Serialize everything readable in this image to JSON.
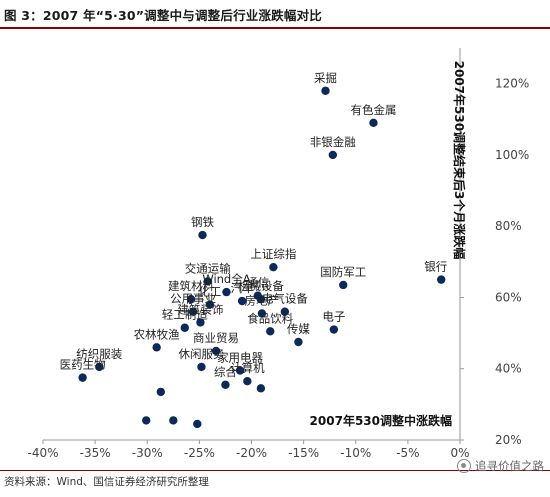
{
  "header": {
    "title": "图 3：2007 年“5·30”调整中与调整后行业涨跌幅对比"
  },
  "footer": {
    "source": "资料来源：Wind、国信证券经济研究所整理"
  },
  "watermark": {
    "text": "追寻价值之路"
  },
  "chart_data": {
    "type": "scatter",
    "xlabel": "2007年530调整中涨跌幅",
    "ylabel": "2007年530调整结束后3个月涨跌幅",
    "xlim": [
      -40,
      0
    ],
    "ylim": [
      20,
      130
    ],
    "x_ticks": [
      "-40%",
      "-35%",
      "-30%",
      "-25%",
      "-20%",
      "-15%",
      "-10%",
      "-5%",
      "0%"
    ],
    "y_ticks": [
      "20%",
      "40%",
      "60%",
      "80%",
      "100%",
      "120%"
    ],
    "grid": false,
    "marker_color": "#0b2a5b",
    "points": [
      {
        "label": "采掘",
        "x": -12.9,
        "y": 118
      },
      {
        "label": "有色金属",
        "x": -8.3,
        "y": 109
      },
      {
        "label": "非银金融",
        "x": -12.2,
        "y": 100
      },
      {
        "label": "钢铁",
        "x": -24.7,
        "y": 77.5
      },
      {
        "label": "银行",
        "x": -1.8,
        "y": 65
      },
      {
        "label": "上证综指",
        "x": -17.9,
        "y": 68.5
      },
      {
        "label": "国防军工",
        "x": -11.2,
        "y": 63.5
      },
      {
        "label": "交通运输",
        "x": -24.2,
        "y": 64.5
      },
      {
        "label": "Wind全A",
        "x": -22.4,
        "y": 61.5
      },
      {
        "label": "通信",
        "x": -19.4,
        "y": 60.5
      },
      {
        "label": "建筑材料",
        "x": -25.8,
        "y": 59.5
      },
      {
        "label": "机械设备",
        "x": -19.1,
        "y": 59.5
      },
      {
        "label": "化工",
        "x": -24.0,
        "y": 58
      },
      {
        "label": "汽车",
        "x": -20.9,
        "y": 59
      },
      {
        "label": "公用事业",
        "x": -25.6,
        "y": 56
      },
      {
        "label": "房地产",
        "x": -19.0,
        "y": 55.5
      },
      {
        "label": "电气设备",
        "x": -16.8,
        "y": 56
      },
      {
        "label": "轻工制造",
        "x": -26.4,
        "y": 51.5
      },
      {
        "label": "建筑装饰",
        "x": -24.9,
        "y": 53
      },
      {
        "label": "食品饮料",
        "x": -18.2,
        "y": 50.5
      },
      {
        "label": "电子",
        "x": -12.1,
        "y": 51
      },
      {
        "label": "农林牧渔",
        "x": -29.1,
        "y": 46
      },
      {
        "label": "传媒",
        "x": -15.5,
        "y": 47.5
      },
      {
        "label": "商业贸易",
        "x": -23.4,
        "y": 45
      },
      {
        "label": "纺织服装",
        "x": -34.6,
        "y": 40.5
      },
      {
        "label": "医药生物",
        "x": -36.2,
        "y": 37.5
      },
      {
        "label": "休闲服务",
        "x": -24.8,
        "y": 40.5
      },
      {
        "label": "家用电器",
        "x": -21.1,
        "y": 39.5
      },
      {
        "label": "计算机",
        "x": -20.4,
        "y": 36.5
      },
      {
        "label": "综合",
        "x": -22.5,
        "y": 35.5
      },
      {
        "label": "",
        "x": -19.1,
        "y": 34.5
      },
      {
        "label": "",
        "x": -28.7,
        "y": 33.5
      },
      {
        "label": "",
        "x": -30.1,
        "y": 25.5
      },
      {
        "label": "",
        "x": -27.5,
        "y": 25.5
      },
      {
        "label": "",
        "x": -25.2,
        "y": 24.5
      }
    ]
  }
}
